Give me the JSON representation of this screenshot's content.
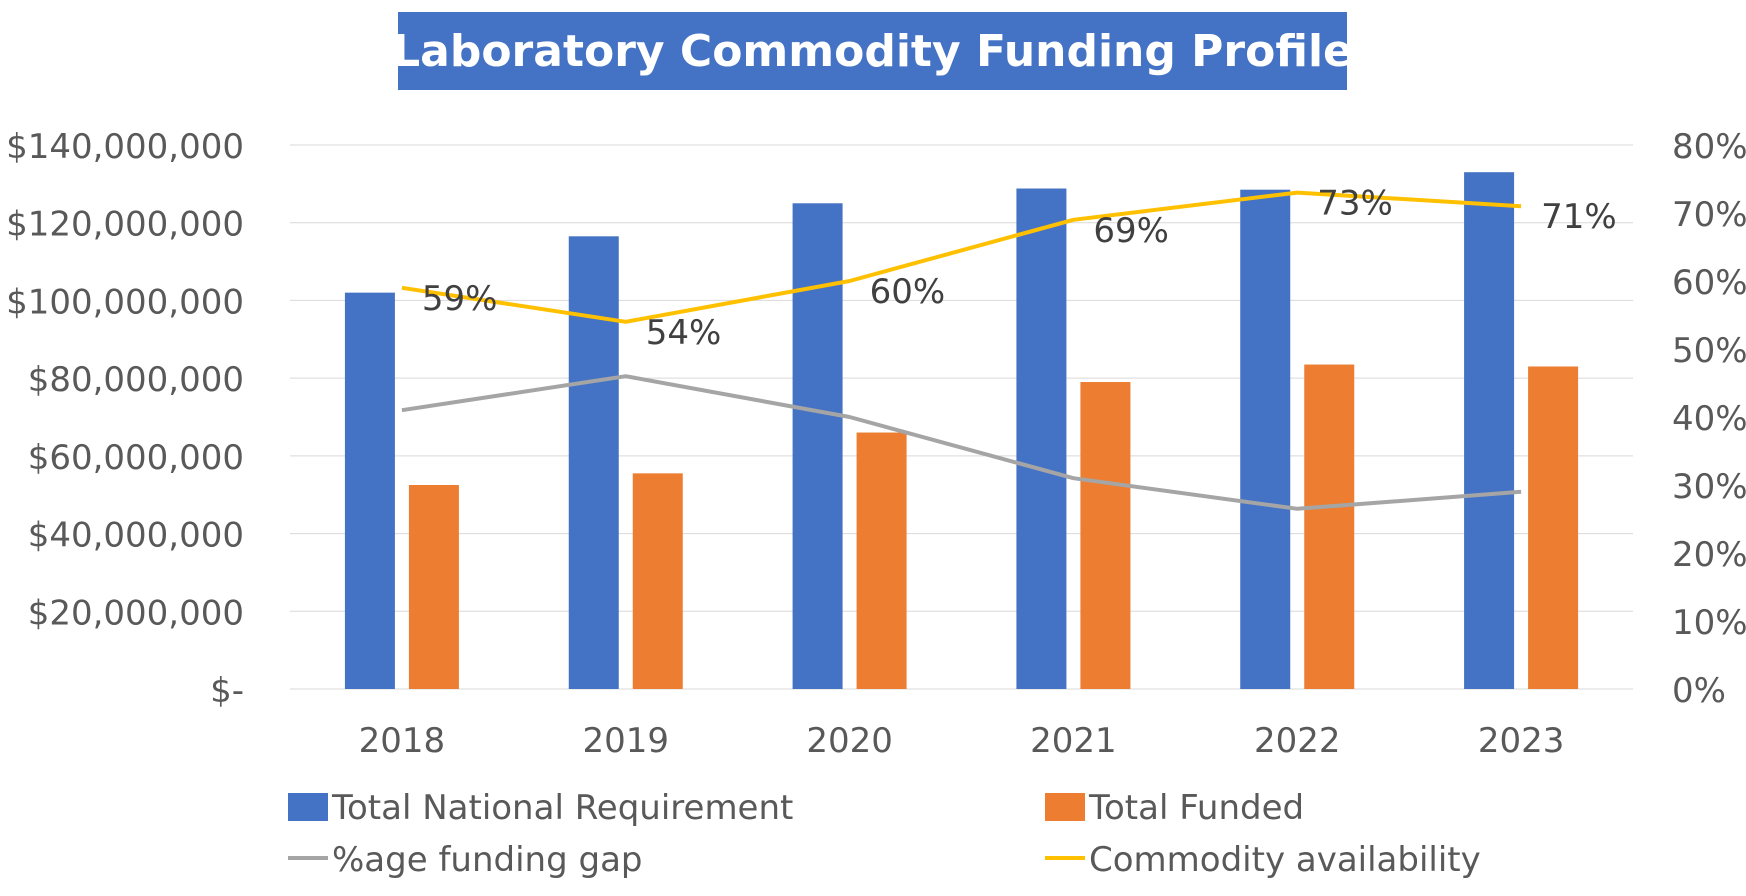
{
  "chart_data": {
    "type": "bar",
    "title": "Laboratory Commodity Funding Profile",
    "categories": [
      "2018",
      "2019",
      "2020",
      "2021",
      "2022",
      "2023"
    ],
    "series": [
      {
        "name": "Total National Requirement",
        "kind": "bar",
        "axis": "left",
        "color": "#4472c4",
        "values": [
          102000000,
          116500000,
          125000000,
          128800000,
          128500000,
          133000000
        ]
      },
      {
        "name": "Total Funded",
        "kind": "bar",
        "axis": "left",
        "color": "#ed7d31",
        "values": [
          52500000,
          55500000,
          66000000,
          79000000,
          83500000,
          83000000
        ]
      },
      {
        "name": "%age funding gap",
        "kind": "line",
        "axis": "right",
        "color": "#a5a5a5",
        "values": [
          41,
          46,
          40,
          31,
          26.5,
          29
        ]
      },
      {
        "name": "Commodity availability",
        "kind": "line",
        "axis": "right",
        "color": "#ffc000",
        "values": [
          59,
          54,
          60,
          69,
          73,
          71
        ],
        "data_labels": [
          "59%",
          "54%",
          "60%",
          "69%",
          "73%",
          "71%"
        ]
      }
    ],
    "y_left": {
      "min": 0,
      "max": 140000000,
      "step": 20000000,
      "tick_labels": [
        "$-",
        "$20,000,000",
        "$40,000,000",
        "$60,000,000",
        "$80,000,000",
        "$100,000,000",
        "$120,000,000",
        "$140,000,000"
      ]
    },
    "y_right": {
      "min": 0,
      "max": 80,
      "step": 10,
      "tick_labels": [
        "0%",
        "10%",
        "20%",
        "30%",
        "40%",
        "50%",
        "60%",
        "70%",
        "80%"
      ]
    },
    "grid": true,
    "legend_position": "bottom",
    "colors": {
      "title_bg": "#4472c4",
      "title_text": "#ffffff",
      "axis_text": "#595959",
      "grid": "#d9d9d9"
    }
  }
}
